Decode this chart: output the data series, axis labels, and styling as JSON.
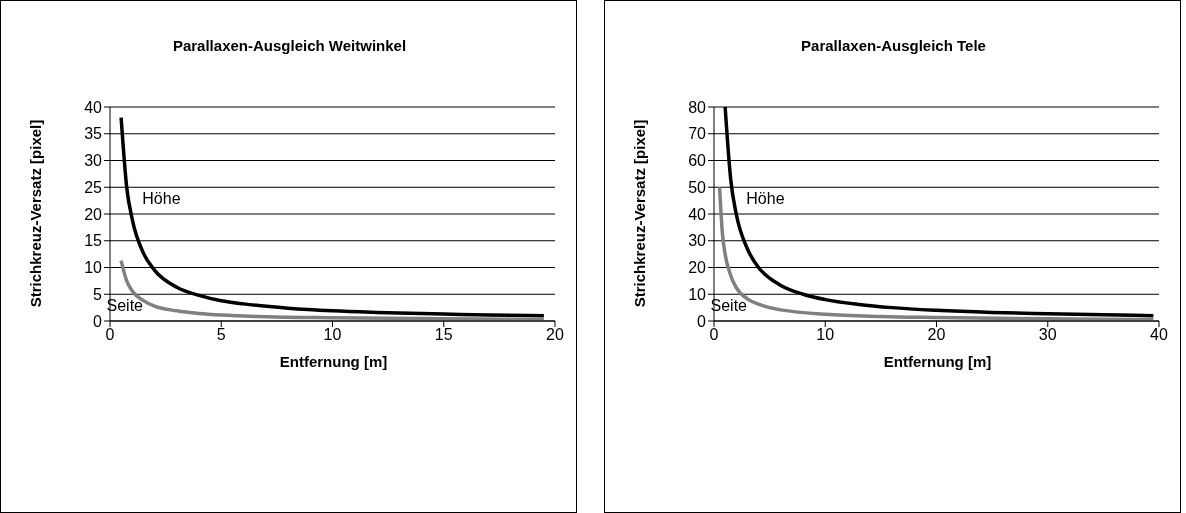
{
  "chart_data": [
    {
      "type": "line",
      "title": "Parallaxen-Ausgleich Weitwinkel",
      "xlabel": "Entfernung [m]",
      "ylabel": "Strichkreuz-Versatz [pixel]",
      "xlim": [
        0,
        20
      ],
      "xticks": [
        0,
        5,
        10,
        15,
        20
      ],
      "ylim": [
        0,
        40
      ],
      "yticks": [
        0,
        5,
        10,
        15,
        20,
        25,
        30,
        35,
        40
      ],
      "grid": "y",
      "marker": "none",
      "line_style": "solid",
      "series": [
        {
          "name": "Höhe",
          "color": "#000000",
          "x": [
            0.5,
            0.75,
            1,
            1.5,
            2,
            3,
            4,
            5,
            6,
            8,
            10,
            12,
            15,
            17,
            19.5
          ],
          "values": [
            38,
            25,
            19,
            12.7,
            9.5,
            6.3,
            4.8,
            3.8,
            3.2,
            2.4,
            1.9,
            1.6,
            1.3,
            1.1,
            1.0
          ]
        },
        {
          "name": "Seite",
          "color": "#808080",
          "x": [
            0.5,
            0.75,
            1,
            1.5,
            2,
            3,
            4,
            5,
            7,
            10,
            15,
            19.5
          ],
          "values": [
            11.3,
            7.5,
            5.6,
            3.8,
            2.8,
            1.9,
            1.4,
            1.1,
            0.8,
            0.6,
            0.4,
            0.3
          ]
        }
      ]
    },
    {
      "type": "line",
      "title": "Parallaxen-Ausgleich Tele",
      "xlabel": "Entfernung [m]",
      "ylabel": "Strichkreuz-Versatz [pixel]",
      "xlim": [
        0,
        40
      ],
      "xticks": [
        0,
        10,
        20,
        30,
        40
      ],
      "ylim": [
        0,
        80
      ],
      "yticks": [
        0,
        10,
        20,
        30,
        40,
        50,
        60,
        70,
        80
      ],
      "grid": "y",
      "marker": "none",
      "line_style": "solid",
      "series": [
        {
          "name": "Höhe",
          "color": "#000000",
          "x": [
            1,
            1.5,
            2,
            3,
            4,
            5,
            6,
            8,
            10,
            13,
            16,
            20,
            25,
            30,
            35,
            39.5
          ],
          "values": [
            80,
            53,
            40,
            27,
            20,
            16,
            13.3,
            10,
            8,
            6.2,
            5,
            4,
            3.2,
            2.7,
            2.3,
            2.0
          ]
        },
        {
          "name": "Seite",
          "color": "#808080",
          "x": [
            0.5,
            0.75,
            1,
            1.5,
            2,
            3,
            4,
            5,
            7,
            10,
            15,
            20,
            30,
            39.5
          ],
          "values": [
            50,
            33,
            25,
            17,
            12.5,
            8.3,
            6.3,
            5,
            3.6,
            2.5,
            1.7,
            1.3,
            0.8,
            0.6
          ]
        }
      ]
    }
  ]
}
